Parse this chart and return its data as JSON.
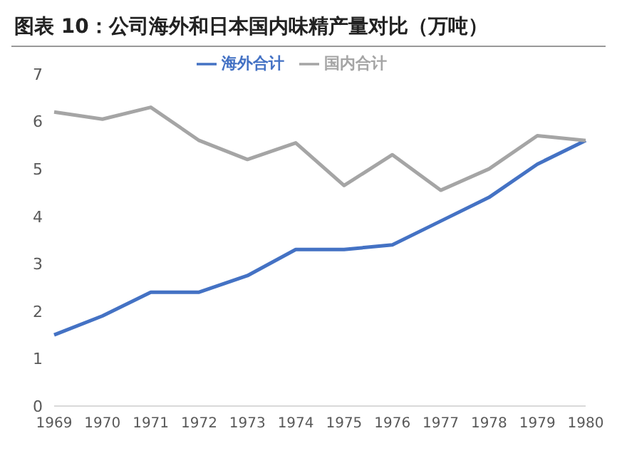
{
  "chart_data": {
    "type": "line",
    "title": "图表 10：公司海外和日本国内味精产量对比（万吨）",
    "categories": [
      "1969",
      "1970",
      "1971",
      "1972",
      "1973",
      "1974",
      "1975",
      "1976",
      "1977",
      "1978",
      "1979",
      "1980"
    ],
    "series": [
      {
        "name": "海外合计",
        "color": "#4472c4",
        "values": [
          1.5,
          1.9,
          2.4,
          2.4,
          2.75,
          3.3,
          3.3,
          3.4,
          3.9,
          4.4,
          5.1,
          5.6
        ]
      },
      {
        "name": "国内合计",
        "color": "#a5a5a5",
        "values": [
          6.2,
          6.05,
          6.3,
          5.6,
          5.2,
          5.55,
          4.65,
          5.3,
          4.55,
          5.0,
          5.7,
          5.6
        ]
      }
    ],
    "ylim": [
      0,
      7
    ],
    "yticks": [
      0,
      1,
      2,
      3,
      4,
      5,
      6,
      7
    ],
    "grid": false,
    "legend": "top",
    "marker": "none",
    "line_style": "solid"
  }
}
